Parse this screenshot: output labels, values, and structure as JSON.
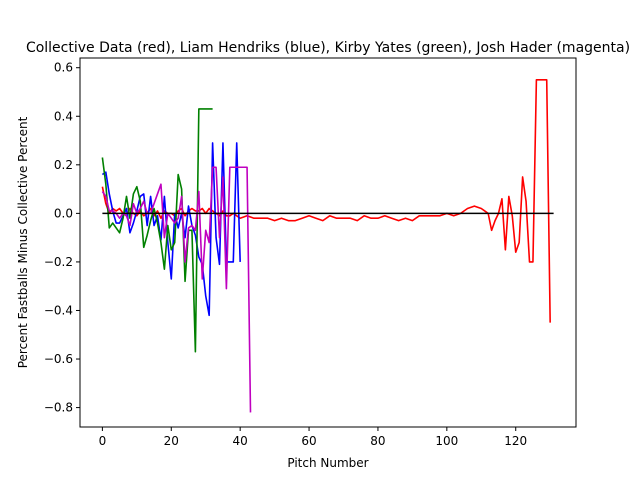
{
  "chart_data": {
    "type": "line",
    "title": "Collective Data (red), Liam Hendriks (blue), Kirby Yates (green), Josh Hader (magenta)",
    "xlabel": "Pitch Number",
    "ylabel": "Percent Fastballs Minus Collective Percent",
    "xlim": [
      -6.5,
      137.5
    ],
    "ylim": [
      -0.88,
      0.64
    ],
    "xticks": [
      0,
      20,
      40,
      60,
      80,
      100,
      120
    ],
    "yticks": [
      -0.8,
      -0.6,
      -0.4,
      -0.2,
      0.0,
      0.2,
      0.4,
      0.6
    ],
    "ytick_labels": [
      "−0.8",
      "−0.6",
      "−0.4",
      "−0.2",
      "0.0",
      "0.2",
      "0.4",
      "0.6"
    ],
    "grid": false,
    "series": [
      {
        "color": "#ff0000",
        "x": [
          0,
          1,
          2,
          3,
          4,
          5,
          6,
          7,
          8,
          9,
          10,
          11,
          12,
          13,
          14,
          15,
          16,
          17,
          18,
          19,
          20,
          21,
          22,
          23,
          24,
          25,
          26,
          27,
          28,
          29,
          30,
          31,
          32,
          33,
          34,
          35,
          36,
          37,
          38,
          39,
          40,
          42,
          44,
          46,
          48,
          50,
          52,
          54,
          56,
          58,
          60,
          62,
          64,
          66,
          68,
          70,
          72,
          74,
          76,
          78,
          80,
          82,
          84,
          86,
          88,
          90,
          92,
          94,
          96,
          98,
          100,
          102,
          104,
          106,
          108,
          110,
          111,
          112,
          113,
          114,
          115,
          116,
          117,
          118,
          119,
          120,
          121,
          122,
          123,
          124,
          125,
          126,
          127,
          128,
          129,
          130
        ],
        "y": [
          0.11,
          0.04,
          0.0,
          0.02,
          0.01,
          0.02,
          0.0,
          -0.01,
          0.02,
          0.0,
          -0.01,
          0.01,
          -0.01,
          0.0,
          0.02,
          -0.01,
          0.01,
          -0.02,
          0.01,
          0.0,
          0.0,
          -0.01,
          0.01,
          0.02,
          -0.01,
          0.01,
          0.02,
          0.01,
          0.01,
          0.02,
          0.0,
          0.02,
          0.01,
          0.0,
          -0.01,
          0.01,
          -0.01,
          -0.01,
          0.0,
          -0.01,
          -0.02,
          -0.01,
          -0.02,
          -0.02,
          -0.02,
          -0.03,
          -0.02,
          -0.03,
          -0.03,
          -0.02,
          -0.01,
          -0.02,
          -0.03,
          -0.01,
          -0.02,
          -0.02,
          -0.02,
          -0.03,
          -0.01,
          -0.02,
          -0.02,
          -0.01,
          -0.02,
          -0.03,
          -0.02,
          -0.03,
          -0.01,
          -0.01,
          -0.01,
          -0.01,
          0.0,
          -0.01,
          0.0,
          0.02,
          0.03,
          0.02,
          0.01,
          0.0,
          -0.07,
          -0.03,
          0.0,
          0.06,
          -0.15,
          0.07,
          -0.01,
          -0.16,
          -0.12,
          0.15,
          0.05,
          -0.2,
          -0.2,
          0.55,
          0.55,
          0.55,
          0.55,
          -0.45
        ]
      },
      {
        "color": "#0000ff",
        "x": [
          0,
          1,
          2,
          3,
          4,
          5,
          6,
          7,
          8,
          9,
          10,
          11,
          12,
          13,
          14,
          15,
          16,
          17,
          18,
          19,
          20,
          21,
          22,
          23,
          24,
          25,
          26,
          27,
          28,
          29,
          30,
          31,
          32,
          33,
          34,
          35,
          36,
          37,
          38,
          39,
          40
        ],
        "y": [
          0.16,
          0.17,
          0.08,
          0.01,
          -0.04,
          -0.04,
          -0.01,
          0.02,
          -0.08,
          -0.04,
          0.01,
          0.07,
          0.08,
          -0.05,
          0.07,
          -0.05,
          -0.01,
          -0.11,
          0.07,
          -0.12,
          -0.27,
          0.0,
          -0.06,
          0.0,
          -0.1,
          0.03,
          -0.05,
          -0.09,
          -0.18,
          -0.21,
          -0.34,
          -0.42,
          0.29,
          -0.1,
          -0.21,
          0.29,
          -0.2,
          -0.2,
          -0.2,
          0.29,
          -0.2
        ]
      },
      {
        "color": "#008000",
        "x": [
          0,
          1,
          2,
          3,
          4,
          5,
          6,
          7,
          8,
          9,
          10,
          11,
          12,
          13,
          14,
          15,
          16,
          17,
          18,
          19,
          20,
          21,
          22,
          23,
          24,
          25,
          26,
          27,
          28,
          29,
          30,
          31,
          32
        ],
        "y": [
          0.23,
          0.12,
          -0.06,
          -0.04,
          -0.06,
          -0.08,
          -0.02,
          0.07,
          -0.02,
          0.08,
          0.11,
          0.05,
          -0.14,
          -0.09,
          -0.03,
          0.02,
          -0.04,
          -0.12,
          -0.23,
          -0.05,
          -0.15,
          -0.12,
          0.16,
          0.1,
          -0.28,
          -0.07,
          -0.07,
          -0.57,
          0.43,
          0.43,
          0.43,
          0.43,
          0.43
        ]
      },
      {
        "color": "#bf00bf",
        "x": [
          0,
          1,
          2,
          3,
          4,
          5,
          6,
          7,
          8,
          9,
          10,
          11,
          12,
          13,
          14,
          15,
          16,
          17,
          18,
          19,
          20,
          21,
          22,
          23,
          24,
          25,
          26,
          27,
          28,
          29,
          30,
          31,
          32,
          33,
          34,
          35,
          36,
          37,
          38,
          39,
          40,
          41,
          42,
          43
        ],
        "y": [
          0.09,
          0.07,
          0.01,
          0.01,
          0.0,
          -0.02,
          0.0,
          -0.01,
          -0.05,
          0.04,
          0.0,
          0.02,
          0.05,
          0.0,
          0.0,
          0.04,
          0.08,
          0.12,
          -0.1,
          0.0,
          -0.02,
          -0.04,
          -0.02,
          0.07,
          -0.2,
          -0.06,
          -0.05,
          -0.07,
          0.09,
          -0.27,
          -0.07,
          -0.12,
          0.19,
          0.19,
          -0.1,
          0.15,
          -0.31,
          0.19,
          0.19,
          0.19,
          0.19,
          0.19,
          0.19,
          -0.82
        ]
      },
      {
        "color": "#000000",
        "x": [
          0,
          131
        ],
        "y": [
          0,
          0
        ]
      }
    ]
  }
}
